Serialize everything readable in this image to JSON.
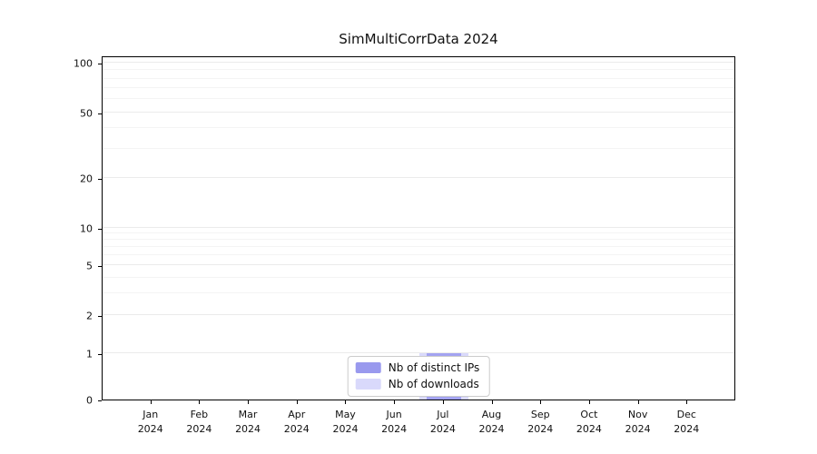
{
  "title": "SimMultiCorrData 2024",
  "chart_data": {
    "type": "bar",
    "title": "SimMultiCorrData 2024",
    "categories": [
      "Jan",
      "Feb",
      "Mar",
      "Apr",
      "May",
      "Jun",
      "Jul",
      "Aug",
      "Sep",
      "Oct",
      "Nov",
      "Dec"
    ],
    "x_sub_label": "2024",
    "series": [
      {
        "name": "Nb of distinct IPs",
        "color": "#9999ee",
        "values": [
          0,
          0,
          0,
          0,
          0,
          0,
          1,
          0,
          0,
          0,
          0,
          0
        ]
      },
      {
        "name": "Nb of downloads",
        "color": "#d9d9fb",
        "values": [
          0,
          0,
          0,
          0,
          0,
          0,
          1,
          0,
          0,
          0,
          0,
          0
        ]
      }
    ],
    "yscale": "symlog",
    "yticks": [
      0,
      1,
      2,
      5,
      10,
      20,
      50,
      100
    ],
    "minor_gridline_values": [
      3,
      4,
      6,
      7,
      8,
      9,
      30,
      40,
      60,
      70,
      80,
      90
    ],
    "ylim": [
      0,
      110
    ],
    "grid": true,
    "legend_position": "lower center"
  }
}
